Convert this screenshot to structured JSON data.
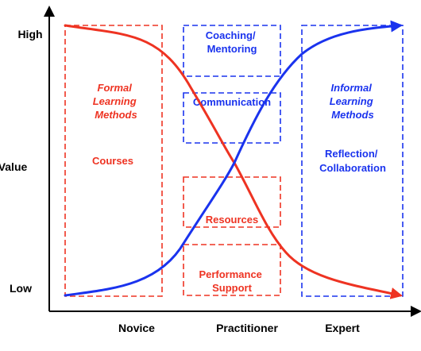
{
  "colors": {
    "formal": "#ee3322",
    "informal": "#1a33ee",
    "axis": "#000000",
    "background": "#ffffff"
  },
  "y_axis": {
    "label": "Value",
    "high": "High",
    "low": "Low"
  },
  "x_axis": {
    "stages": [
      "Novice",
      "Practitioner",
      "Expert"
    ]
  },
  "formal": {
    "title": [
      "Formal",
      "Learning",
      "Methods"
    ],
    "item": "Courses"
  },
  "informal": {
    "title": [
      "Informal",
      "Learning",
      "Methods"
    ],
    "item": [
      "Reflection/",
      "Collaboration"
    ]
  },
  "middle_boxes": {
    "coaching": [
      "Coaching/",
      "Mentoring"
    ],
    "communication": "Communication",
    "resources": "Resources",
    "performance_support": [
      "Performance",
      "Support"
    ]
  },
  "curves": {
    "formal": {
      "start": "High",
      "end": "Low",
      "color_key": "formal"
    },
    "informal": {
      "start": "Low",
      "end": "High",
      "color_key": "informal"
    }
  }
}
